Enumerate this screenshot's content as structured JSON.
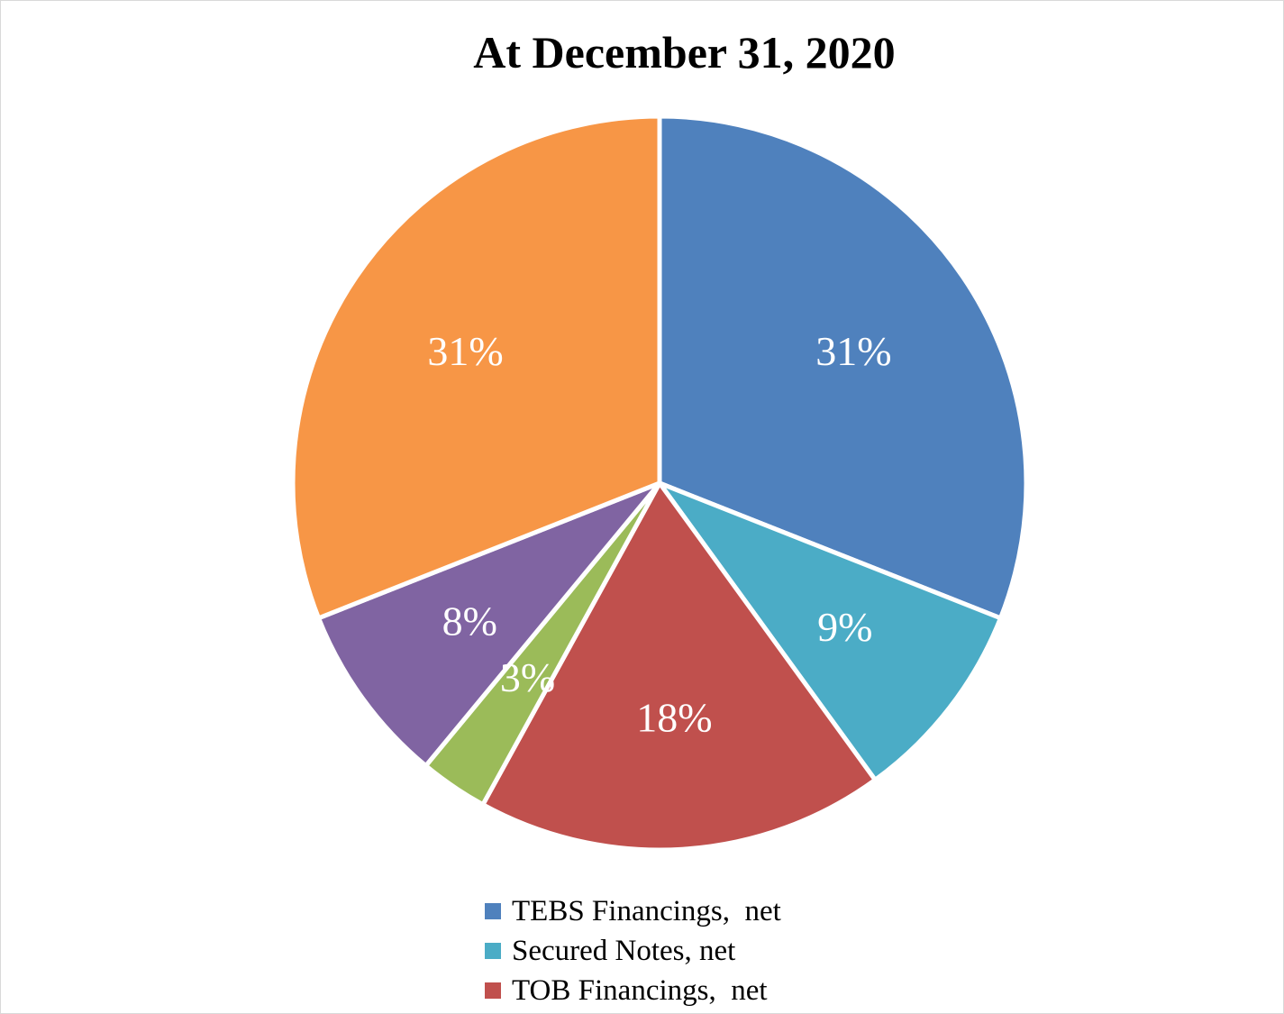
{
  "chart_data": {
    "type": "pie",
    "title": "At December 31, 2020",
    "slices": [
      {
        "name": "TEBS Financings,  net",
        "value": 31,
        "label": "31%",
        "color": "#4F81BD"
      },
      {
        "name": "Secured Notes, net",
        "value": 9,
        "label": "9%",
        "color": "#4BACC6"
      },
      {
        "name": "TOB Financings,  net",
        "value": 18,
        "label": "18%",
        "color": "#C0504D"
      },
      {
        "name": "",
        "value": 3,
        "label": "3%",
        "color": "#9BBB59"
      },
      {
        "name": "",
        "value": 8,
        "label": "8%",
        "color": "#8064A2"
      },
      {
        "name": "",
        "value": 31,
        "label": "31%",
        "color": "#F79646"
      }
    ],
    "legend_position": "bottom"
  }
}
